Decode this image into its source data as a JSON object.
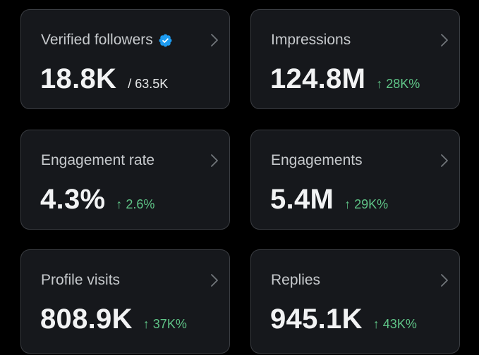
{
  "colors": {
    "background": "#000000",
    "card": "#16181c",
    "card_border": "#3a3d42",
    "positive_delta": "#5fc487",
    "verified_badge": "#1d9bf0"
  },
  "cards": [
    {
      "title": "Verified followers",
      "value": "18.8K",
      "sub": "/ 63.5K",
      "icon": "verified-badge-icon"
    },
    {
      "title": "Impressions",
      "value": "124.8M",
      "delta": "↑ 28K%"
    },
    {
      "title": "Engagement rate",
      "value": "4.3%",
      "delta": "↑ 2.6%"
    },
    {
      "title": "Engagements",
      "value": "5.4M",
      "delta": "↑ 29K%"
    },
    {
      "title": "Profile visits",
      "value": "808.9K",
      "delta": "↑ 37K%"
    },
    {
      "title": "Replies",
      "value": "945.1K",
      "delta": "↑ 43K%"
    }
  ]
}
